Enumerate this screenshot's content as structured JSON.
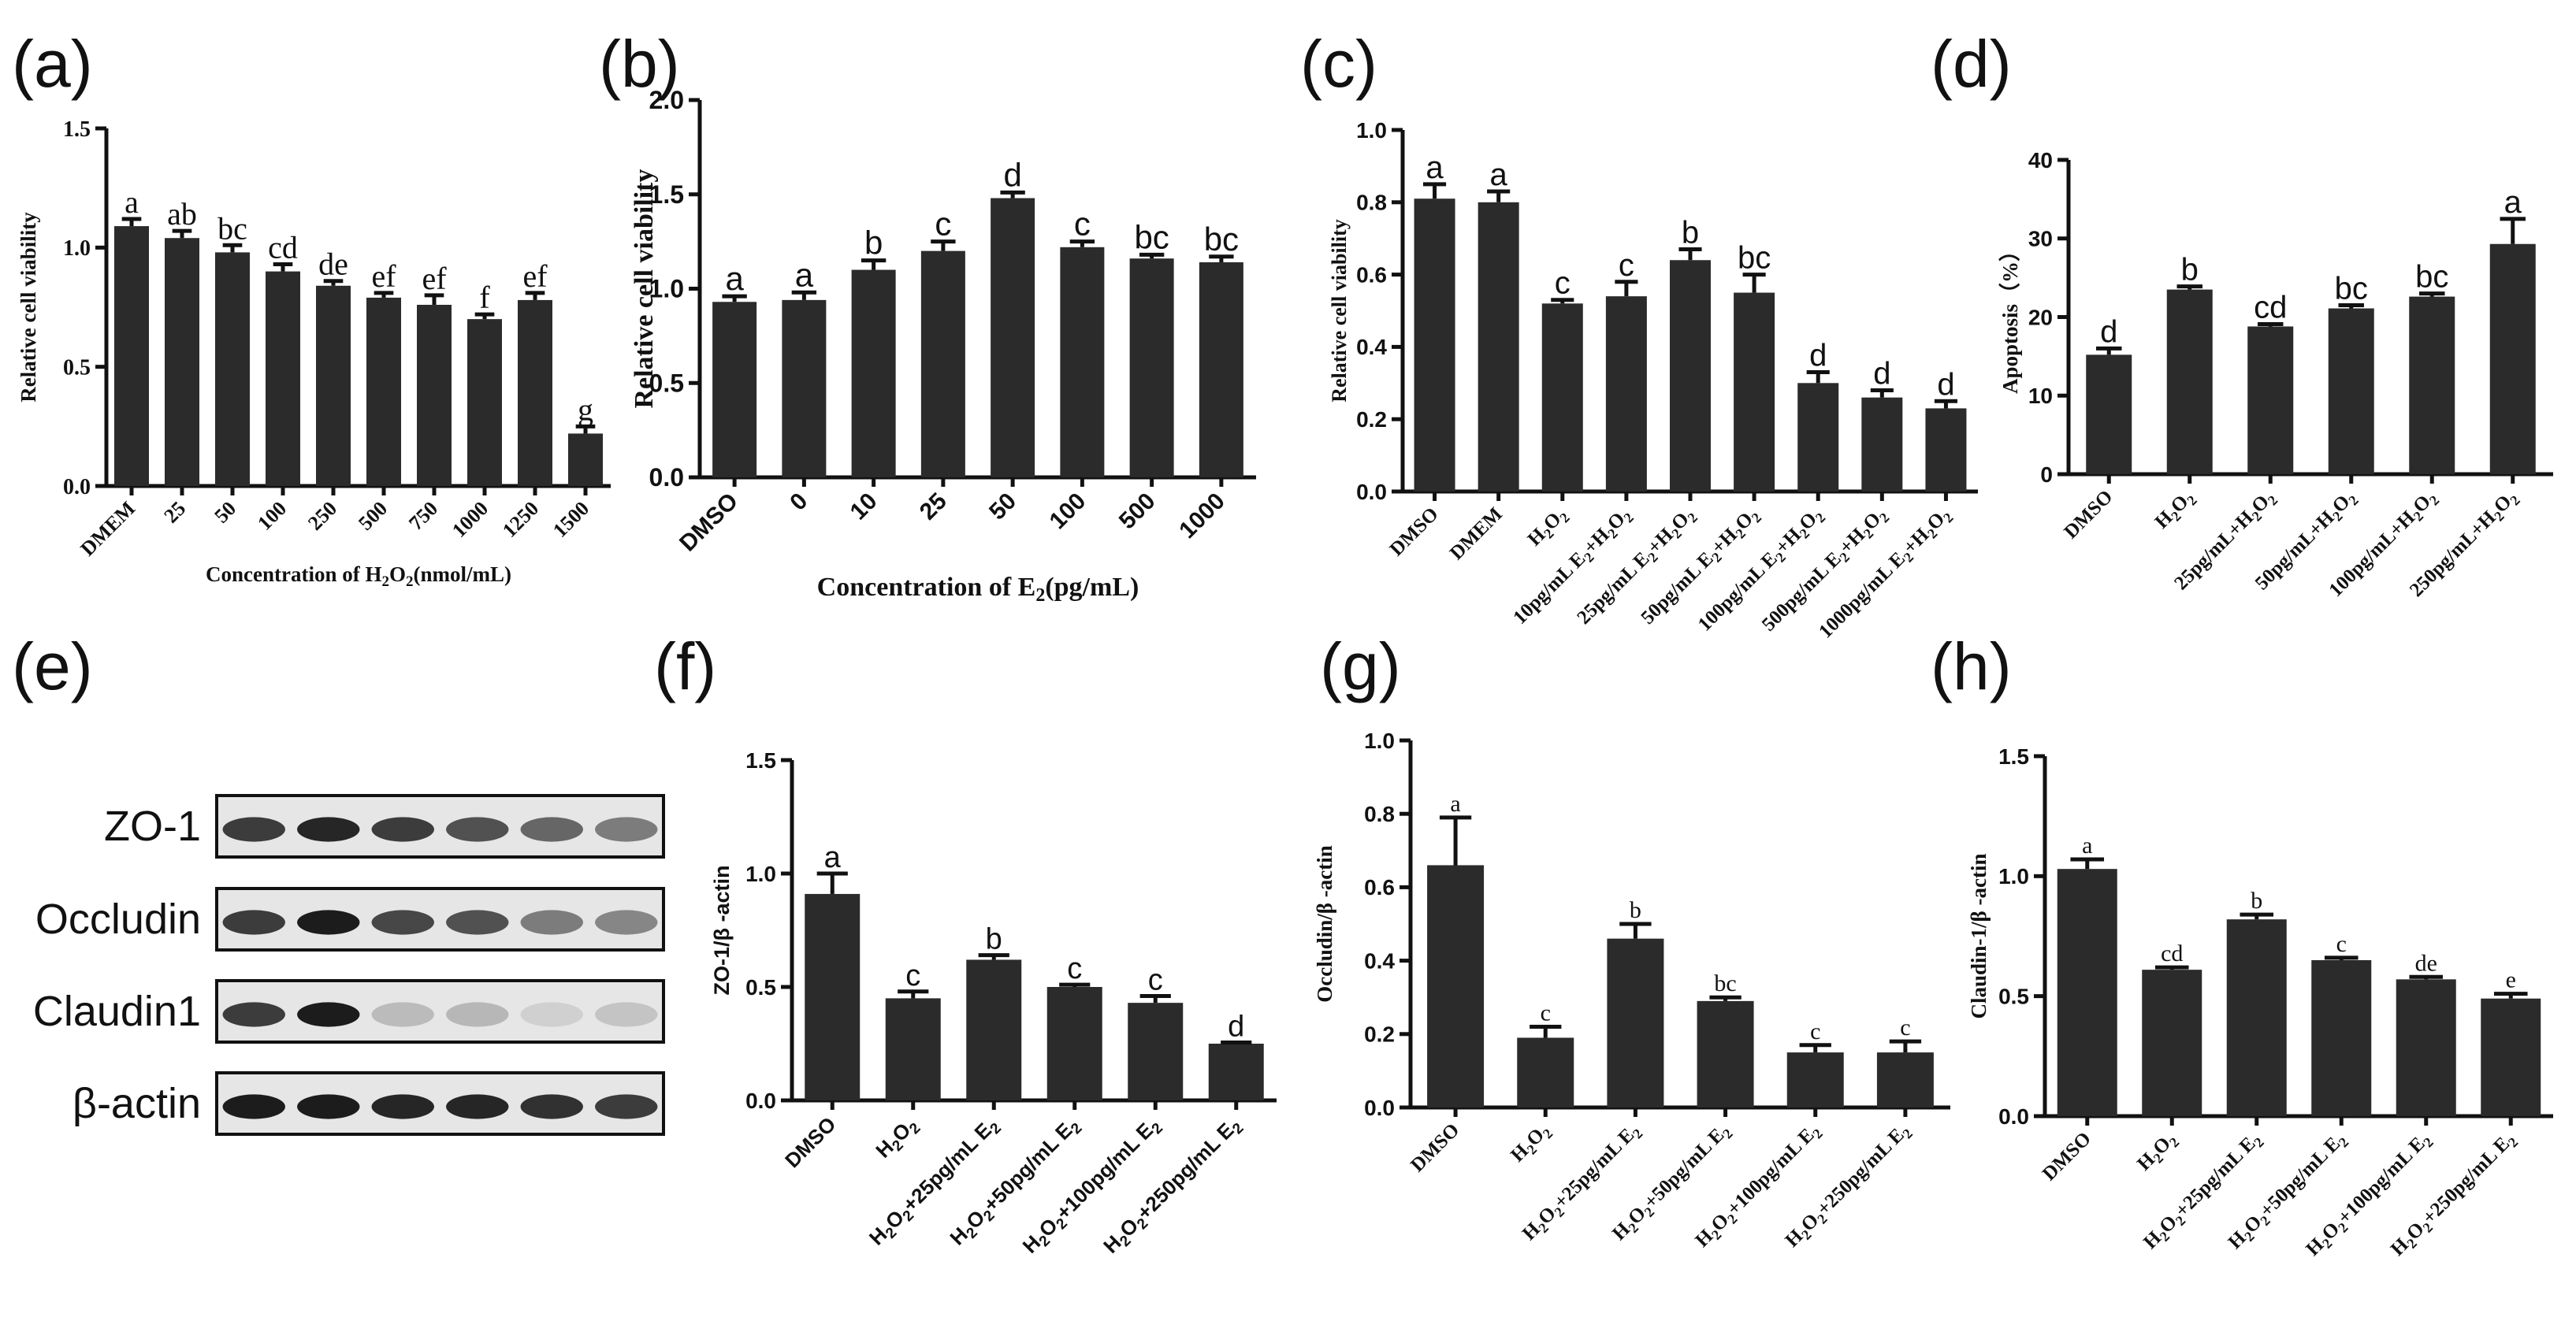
{
  "chart_data": [
    {
      "id": "a",
      "panel": "(a)",
      "type": "bar",
      "categories": [
        "DMEM",
        "25",
        "50",
        "100",
        "250",
        "500",
        "750",
        "1000",
        "1250",
        "1500"
      ],
      "values": [
        1.09,
        1.04,
        0.98,
        0.9,
        0.84,
        0.79,
        0.76,
        0.7,
        0.78,
        0.22
      ],
      "errors": [
        0.03,
        0.03,
        0.03,
        0.03,
        0.02,
        0.02,
        0.04,
        0.02,
        0.03,
        0.03
      ],
      "letters": [
        "a",
        "ab",
        "bc",
        "cd",
        "de",
        "ef",
        "ef",
        "f",
        "ef",
        "g"
      ],
      "ylabel": "Relative cell viability",
      "xlabel": "Concentration of H2O2(nmol/mL)",
      "ylim": [
        0,
        1.5
      ],
      "yticks": [
        "0.0",
        "0.5",
        "1.0",
        "1.5"
      ]
    },
    {
      "id": "b",
      "panel": "(b)",
      "type": "bar",
      "categories": [
        "DMSO",
        "0",
        "10",
        "25",
        "50",
        "100",
        "500",
        "1000"
      ],
      "values": [
        0.93,
        0.94,
        1.1,
        1.2,
        1.48,
        1.22,
        1.16,
        1.14
      ],
      "errors": [
        0.03,
        0.04,
        0.05,
        0.05,
        0.03,
        0.03,
        0.02,
        0.03
      ],
      "letters": [
        "a",
        "a",
        "b",
        "c",
        "d",
        "c",
        "bc",
        "bc"
      ],
      "ylabel": "Relative cell viability",
      "xlabel": "Concentration of E2(pg/mL)",
      "ylim": [
        0,
        2.0
      ],
      "yticks": [
        "0.0",
        "0.5",
        "1.0",
        "1.5",
        "2.0"
      ]
    },
    {
      "id": "c",
      "panel": "(c)",
      "type": "bar",
      "categories": [
        "DMSO",
        "DMEM",
        "H2O2",
        "10pg/mL E2+H2O2",
        "25pg/mL E2+H2O2",
        "50pg/mL E2+H2O2",
        "100pg/mL E2+H2O2",
        "500pg/mL E2+H2O2",
        "1000pg/mL E2+H2O2"
      ],
      "values": [
        0.81,
        0.8,
        0.52,
        0.54,
        0.64,
        0.55,
        0.3,
        0.26,
        0.23
      ],
      "errors": [
        0.04,
        0.03,
        0.01,
        0.04,
        0.03,
        0.05,
        0.03,
        0.02,
        0.02
      ],
      "letters": [
        "a",
        "a",
        "c",
        "c",
        "b",
        "bc",
        "d",
        "d",
        "d"
      ],
      "ylabel": "Relative cell viability",
      "xlabel": "",
      "ylim": [
        0,
        1.0
      ],
      "yticks": [
        "0.0",
        "0.2",
        "0.4",
        "0.6",
        "0.8",
        "1.0"
      ]
    },
    {
      "id": "d",
      "panel": "(d)",
      "type": "bar",
      "categories": [
        "DMSO",
        "H2O2",
        "25pg/mL+H2O2",
        "50pg/mL+H2O2",
        "100pg/mL+H2O2",
        "250pg/mL+H2O2"
      ],
      "values": [
        15.2,
        23.5,
        18.8,
        21.1,
        22.6,
        29.3
      ],
      "errors": [
        0.8,
        0.4,
        0.3,
        0.4,
        0.4,
        3.2
      ],
      "letters": [
        "d",
        "b",
        "cd",
        "bc",
        "bc",
        "a"
      ],
      "ylabel": "Apoptosis（%）",
      "xlabel": "",
      "ylim": [
        0,
        40
      ],
      "yticks": [
        "0",
        "10",
        "20",
        "30",
        "40"
      ]
    },
    {
      "id": "f",
      "panel": "(f)",
      "type": "bar",
      "categories": [
        "DMSO",
        "H2O2",
        "H2O2+25pg/mL E2",
        "H2O2+50pg/mL E2",
        "H2O2+100pg/mL E2",
        "H2O2+250pg/mL E2"
      ],
      "values": [
        0.91,
        0.45,
        0.62,
        0.5,
        0.43,
        0.25
      ],
      "errors": [
        0.09,
        0.03,
        0.02,
        0.01,
        0.03,
        0.005
      ],
      "letters": [
        "a",
        "c",
        "b",
        "c",
        "c",
        "d"
      ],
      "ylabel": "ZO-1/β -actin",
      "xlabel": "",
      "ylim": [
        0,
        1.5
      ],
      "yticks": [
        "0.0",
        "0.5",
        "1.0",
        "1.5"
      ]
    },
    {
      "id": "g",
      "panel": "(g)",
      "type": "bar",
      "categories": [
        "DMSO",
        "H2O2",
        "H2O2+25pg/mL E2",
        "H2O2+50pg/mL E2",
        "H2O2+100pg/mL E2",
        "H2O2+250pg/mL E2"
      ],
      "values": [
        0.66,
        0.19,
        0.46,
        0.29,
        0.15,
        0.15
      ],
      "errors": [
        0.13,
        0.03,
        0.04,
        0.01,
        0.02,
        0.03
      ],
      "letters": [
        "a",
        "c",
        "b",
        "bc",
        "c",
        "c"
      ],
      "ylabel": "Occludin/β -actin",
      "xlabel": "",
      "ylim": [
        0,
        1.0
      ],
      "yticks": [
        "0.0",
        "0.2",
        "0.4",
        "0.6",
        "0.8",
        "1.0"
      ]
    },
    {
      "id": "h",
      "panel": "(h)",
      "type": "bar",
      "categories": [
        "DMSO",
        "H2O2",
        "H2O2+25pg/mL E2",
        "H2O2+50pg/mL E2",
        "H2O2+100pg/mL E2",
        "H2O2+250pg/mL E2"
      ],
      "values": [
        1.03,
        0.61,
        0.82,
        0.65,
        0.57,
        0.49
      ],
      "errors": [
        0.04,
        0.01,
        0.02,
        0.01,
        0.01,
        0.02
      ],
      "letters": [
        "a",
        "cd",
        "b",
        "c",
        "de",
        "e"
      ],
      "ylabel": "Claudin-1/β -actin",
      "xlabel": "",
      "ylim": [
        0,
        1.5
      ],
      "yticks": [
        "0.0",
        "0.5",
        "1.0",
        "1.5"
      ]
    }
  ],
  "blot": {
    "panel": "(e)",
    "rows": [
      "ZO-1",
      "Occludin",
      "Claudin1",
      "β-actin"
    ],
    "intensities": [
      [
        0.8,
        0.9,
        0.8,
        0.7,
        0.6,
        0.5
      ],
      [
        0.8,
        0.95,
        0.75,
        0.7,
        0.5,
        0.45
      ],
      [
        0.8,
        0.95,
        0.2,
        0.22,
        0.1,
        0.16
      ],
      [
        0.95,
        0.95,
        0.9,
        0.9,
        0.85,
        0.8
      ]
    ]
  }
}
